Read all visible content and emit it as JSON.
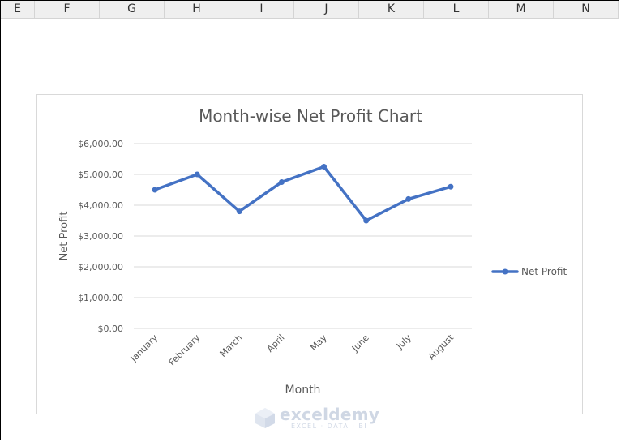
{
  "spreadsheet": {
    "columns": [
      "E",
      "F",
      "G",
      "H",
      "I",
      "J",
      "K",
      "L",
      "M",
      "N"
    ]
  },
  "chart_data": {
    "type": "line",
    "title": "Month-wise Net Profit Chart",
    "xlabel": "Month",
    "ylabel": "Net Profit",
    "categories": [
      "January",
      "February",
      "March",
      "April",
      "May",
      "June",
      "July",
      "August"
    ],
    "series": [
      {
        "name": "Net Profit",
        "values": [
          4500,
          5000,
          3800,
          4750,
          5250,
          3500,
          4200,
          4600
        ],
        "color": "#4472c4"
      }
    ],
    "ylim": [
      0,
      6000
    ],
    "yticks": [
      "$0.00",
      "$1,000.00",
      "$2,000.00",
      "$3,000.00",
      "$4,000.00",
      "$5,000.00",
      "$6,000.00"
    ],
    "grid": true,
    "legend": "right"
  },
  "watermark": {
    "name": "exceldemy",
    "tagline": "EXCEL · DATA · BI"
  }
}
